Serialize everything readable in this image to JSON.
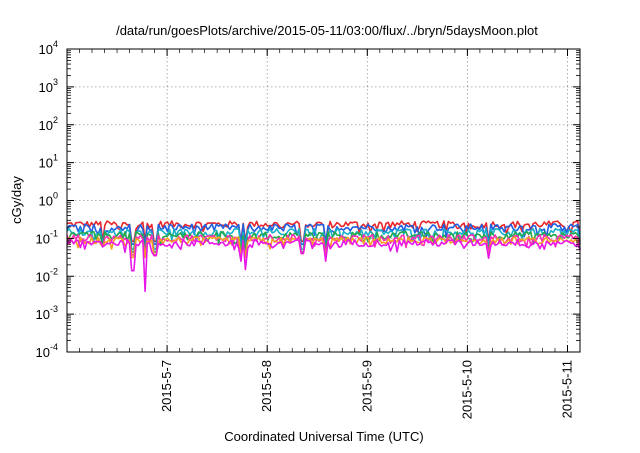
{
  "chart_data": {
    "type": "line",
    "title": "/data/run/goesPlots/archive/2015-05-11/03:00/flux/../bryn/5daysMoon.plot",
    "xlabel": "Coordinated Universal Time (UTC)",
    "ylabel": "cGy/day",
    "y_scale": "log",
    "ylim": [
      0.0001,
      10000
    ],
    "xlim": [
      "2015-05-06 00:00",
      "2015-05-11 03:00"
    ],
    "grid": true,
    "legend": "none",
    "y_ticks": [
      {
        "base": "10",
        "exp": "-4",
        "value": 0.0001
      },
      {
        "base": "10",
        "exp": "-3",
        "value": 0.001
      },
      {
        "base": "10",
        "exp": "-2",
        "value": 0.01
      },
      {
        "base": "10",
        "exp": "-1",
        "value": 0.1
      },
      {
        "base": "10",
        "exp": "0",
        "value": 1
      },
      {
        "base": "10",
        "exp": "1",
        "value": 10
      },
      {
        "base": "10",
        "exp": "2",
        "value": 100
      },
      {
        "base": "10",
        "exp": "3",
        "value": 1000
      },
      {
        "base": "10",
        "exp": "4",
        "value": 10000
      }
    ],
    "x_ticks": [
      {
        "label": "2015-5-7",
        "date": "2015-05-07 00:00"
      },
      {
        "label": "2015-5-8",
        "date": "2015-05-08 00:00"
      },
      {
        "label": "2015-5-9",
        "date": "2015-05-09 00:00"
      },
      {
        "label": "2015-5-10",
        "date": "2015-05-10 00:00"
      },
      {
        "label": "2015-5-11",
        "date": "2015-05-11 00:00"
      }
    ],
    "series": [
      {
        "color": "#e8262b",
        "level": 0.24
      },
      {
        "color": "#1f5fe0",
        "level": 0.2
      },
      {
        "color": "#1ab0c8",
        "level": 0.15
      },
      {
        "color": "#22a84a",
        "level": 0.125
      },
      {
        "color": "#ff2bb8",
        "level": 0.105
      },
      {
        "color": "#f3a020",
        "level": 0.09
      },
      {
        "color": "#e816e8",
        "level": 0.078
      }
    ],
    "dips": [
      {
        "date": "2015-05-06 08:24",
        "value": 0.06
      },
      {
        "date": "2015-05-06 15:50",
        "value": 0.014
      },
      {
        "date": "2015-05-06 18:43",
        "value": 0.004
      },
      {
        "date": "2015-05-06 21:07",
        "value": 0.035
      },
      {
        "date": "2015-05-07 17:31",
        "value": 0.025
      },
      {
        "date": "2015-05-07 18:43",
        "value": 0.015
      },
      {
        "date": "2015-05-08 08:24",
        "value": 0.04
      },
      {
        "date": "2015-05-08 13:55",
        "value": 0.025
      },
      {
        "date": "2015-05-10 05:05",
        "value": 0.03
      },
      {
        "date": "2015-05-11 03:00",
        "value": 0.05
      }
    ]
  }
}
